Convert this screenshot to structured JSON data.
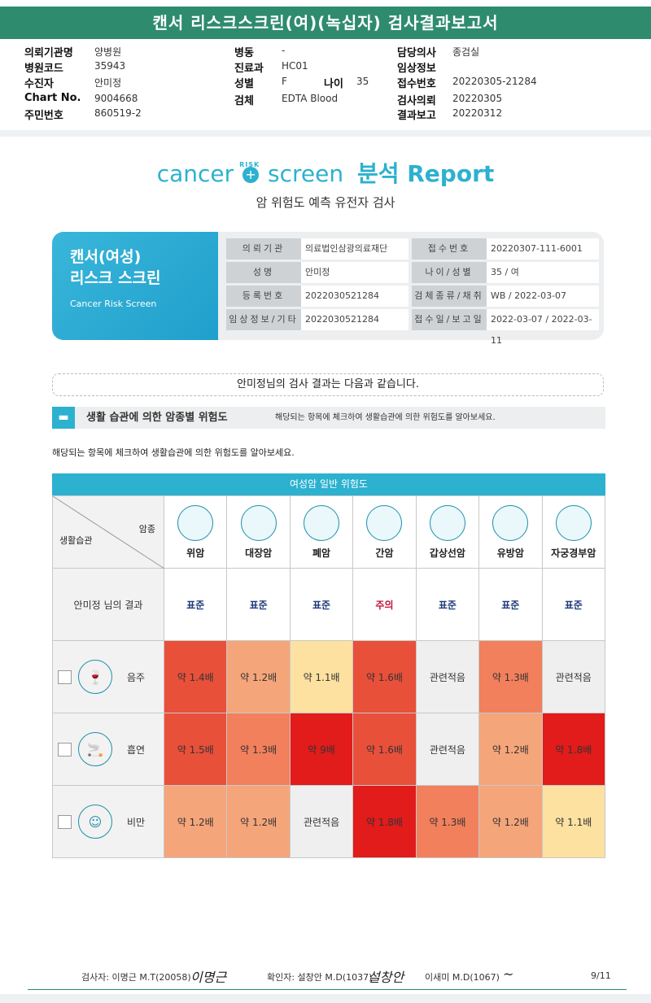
{
  "title": "캔서 리스크스크린(여)(녹십자) 검사결과보고서",
  "header": {
    "col1": [
      {
        "label": "의뢰기관명",
        "value": "양병원"
      },
      {
        "label": "병원코드",
        "value": "35943"
      },
      {
        "label": "수진자",
        "value": "안미정"
      },
      {
        "label": "Chart No.",
        "value": "9004668"
      },
      {
        "label": "주민번호",
        "value": "860519-2"
      }
    ],
    "col2": [
      {
        "label": "병동",
        "value": "-"
      },
      {
        "label": "진료과",
        "value": "HC01"
      },
      {
        "label": "성별",
        "value": "F"
      },
      {
        "label": "검체",
        "value": "EDTA Blood"
      }
    ],
    "age_label": "나이",
    "age_value": "35",
    "col3": [
      {
        "label": "담당의사",
        "value": "종검실"
      },
      {
        "label": "임상정보",
        "value": ""
      },
      {
        "label": "접수번호",
        "value": "20220305-21284"
      },
      {
        "label": "검사의뢰",
        "value": "20220305"
      },
      {
        "label": "결과보고",
        "value": "20220312"
      }
    ]
  },
  "logo": {
    "cancer": "cancer",
    "risk": "RISK",
    "screen": "screen",
    "report": "분석 Report"
  },
  "subtitle": "암 위험도 예측 유전자 검사",
  "card": {
    "title1": "캔서(여성)",
    "title2": "리스크 스크린",
    "title_en": "Cancer Risk Screen",
    "rows": [
      {
        "k1": "의뢰기관",
        "v1": "의료법인삼광의료재단",
        "k2": "접수번호",
        "v2": "20220307-111-6001"
      },
      {
        "k1": "성명",
        "v1": "안미정",
        "k2": "나이/성별",
        "v2": "35 / 여"
      },
      {
        "k1": "등록번호",
        "v1": "2022030521284",
        "k2": "검체종류/채취일",
        "v2": "WB / 2022-03-07"
      },
      {
        "k1": "임상정보/기타",
        "v1": "2022030521284",
        "k2": "접수일/보고일",
        "v2": "2022-03-07 / 2022-03-11"
      }
    ]
  },
  "greeting": "안미정님의 검사 결과는 다음과 같습니다.",
  "section": {
    "title": "생활 습관에 의한 암종별 위험도",
    "desc": "해당되는 항목에 체크하여 생활습관에 의한 위험도를 알아보세요."
  },
  "note": "해당되는 항목에 체크하여 생활습관에 의한 위험도를 알아보세요.",
  "table": {
    "title": "여성암 일반 위험도",
    "corner_top": "암종",
    "corner_bottom": "생활습관",
    "cancers": [
      "위암",
      "대장암",
      "폐암",
      "간암",
      "갑상선암",
      "유방암",
      "자궁경부암"
    ],
    "result_label": "안미정 님의 결과",
    "results": [
      "표준",
      "표준",
      "표준",
      "주의",
      "표준",
      "표준",
      "표준"
    ],
    "result_colors": [
      "#1f3b7a",
      "#1f3b7a",
      "#1f3b7a",
      "#c0143c",
      "#1f3b7a",
      "#1f3b7a",
      "#1f3b7a"
    ],
    "habits": [
      {
        "name": "음주",
        "icon": "alcohol-icon",
        "cells": [
          "약 1.4배",
          "약 1.2배",
          "약 1.1배",
          "약 1.6배",
          "관련적음",
          "약 1.3배",
          "관련적음"
        ],
        "colors": [
          "#e8503a",
          "#f5a57a",
          "#fde1a0",
          "#e8503a",
          "#efefef",
          "#f2805c",
          "#efefef"
        ]
      },
      {
        "name": "흡연",
        "icon": "smoking-icon",
        "cells": [
          "약 1.5배",
          "약 1.3배",
          "약 9배",
          "약 1.6배",
          "관련적음",
          "약 1.2배",
          "약 1.8배"
        ],
        "colors": [
          "#e8503a",
          "#f2805c",
          "#e21b1b",
          "#e8503a",
          "#efefef",
          "#f5a57a",
          "#e21b1b"
        ]
      },
      {
        "name": "비만",
        "icon": "obesity-icon",
        "cells": [
          "약 1.2배",
          "약 1.2배",
          "관련적음",
          "약 1.8배",
          "약 1.3배",
          "약 1.2배",
          "약 1.1배"
        ],
        "colors": [
          "#f5a57a",
          "#f5a57a",
          "#efefef",
          "#e21b1b",
          "#f2805c",
          "#f5a57a",
          "#fde1a0"
        ]
      }
    ]
  },
  "footer": {
    "tester": "검사자: 이명근 M.T(20058)",
    "tester_sig": "이명근",
    "confirmer": "확인자: 설창안 M.D(1037)",
    "confirmer_sig": "설창안",
    "second": "이새미 M.D(1067)",
    "second_sig": "~",
    "page": "9/11"
  }
}
